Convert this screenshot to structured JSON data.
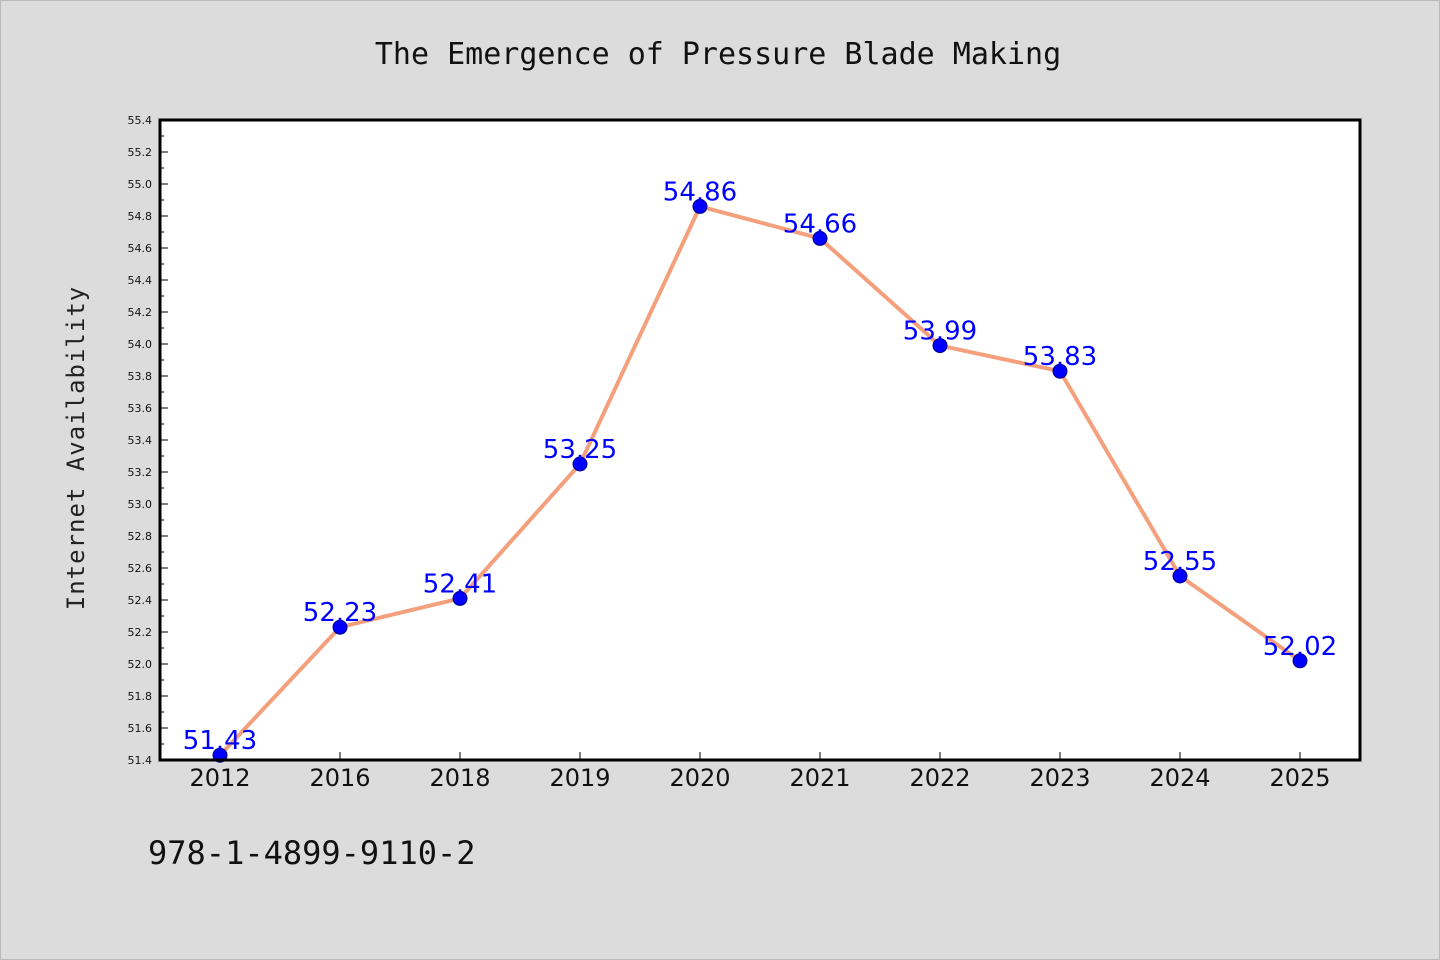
{
  "chart_data": {
    "type": "line",
    "title": "The Emergence of Pressure Blade Making",
    "xlabel": "",
    "ylabel": "Internet Availability",
    "categories": [
      "2012",
      "2016",
      "2018",
      "2019",
      "2020",
      "2021",
      "2022",
      "2023",
      "2024",
      "2025"
    ],
    "series": [
      {
        "values": [
          51.43,
          52.23,
          52.41,
          53.25,
          54.86,
          54.66,
          53.99,
          53.83,
          52.55,
          52.02
        ],
        "labels": [
          "51.43",
          "52.23",
          "52.41",
          "53.25",
          "54.86",
          "54.66",
          "53.99",
          "53.83",
          "52.55",
          "52.02"
        ]
      }
    ],
    "ylim": [
      51.4,
      55.4
    ],
    "yticks": [
      "51.4",
      "51.6",
      "51.8",
      "52.0",
      "52.2",
      "52.4",
      "52.6",
      "52.8",
      "53.0",
      "53.2",
      "53.4",
      "53.6",
      "53.8",
      "54.0",
      "54.2",
      "54.4",
      "54.6",
      "54.8",
      "55.0",
      "55.2",
      "55.4"
    ],
    "grid": false,
    "line_color": "#f4a07c",
    "marker_color": "#0000ff",
    "label_color": "#0000ff",
    "background_color": "#dcdcdc",
    "plot_background_color": "#ffffff"
  },
  "footer": {
    "isbn": "978-1-4899-9110-2"
  }
}
